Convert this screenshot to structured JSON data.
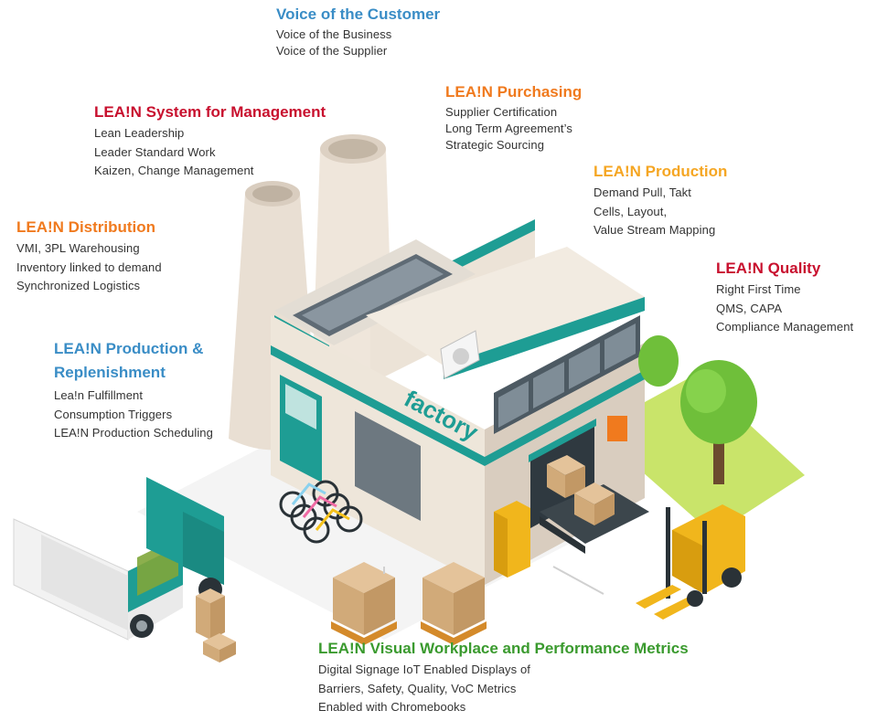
{
  "colors": {
    "blue": "#3a8dc6",
    "crimson": "#c8102e",
    "orange": "#f07a1e",
    "amber": "#f5a623",
    "green": "#3a9a2e",
    "teal": "#1e9d94",
    "lawn": "#c9e46a"
  },
  "blocks": {
    "voice": {
      "title": "Voice of the Customer",
      "lines": [
        "Voice of the Business",
        "Voice of the Supplier"
      ]
    },
    "management": {
      "title": "LEA!N System for Management",
      "lines": [
        "Lean Leadership",
        "Leader Standard Work",
        "Kaizen, Change Management"
      ]
    },
    "purchasing": {
      "title": "LEA!N Purchasing",
      "lines": [
        "Supplier Certification",
        "Long Term Agreement’s",
        "Strategic Sourcing"
      ]
    },
    "production": {
      "title": "LEA!N Production",
      "lines": [
        "Demand Pull, Takt",
        "Cells, Layout,",
        "Value Stream Mapping"
      ]
    },
    "distribution": {
      "title": "LEA!N Distribution",
      "lines": [
        "VMI, 3PL Warehousing",
        "Inventory linked to demand",
        "Synchronized Logistics"
      ]
    },
    "quality": {
      "title": "LEA!N Quality",
      "lines": [
        "Right First Time",
        "QMS, CAPA",
        "Compliance Management"
      ]
    },
    "replenishment": {
      "title_line1": "LEA!N Production &",
      "title_line2": "Replenishment",
      "lines": [
        "Lea!n Fulfillment",
        "Consumption Triggers",
        "LEA!N Production Scheduling"
      ]
    },
    "visual": {
      "title": "LEA!N Visual Workplace and Performance Metrics",
      "lines": [
        "Digital Signage IoT Enabled Displays of",
        "Barriers, Safety, Quality, VoC Metrics",
        "Enabled with Chromebooks"
      ]
    }
  },
  "illustration": {
    "building_sign": "factory"
  }
}
